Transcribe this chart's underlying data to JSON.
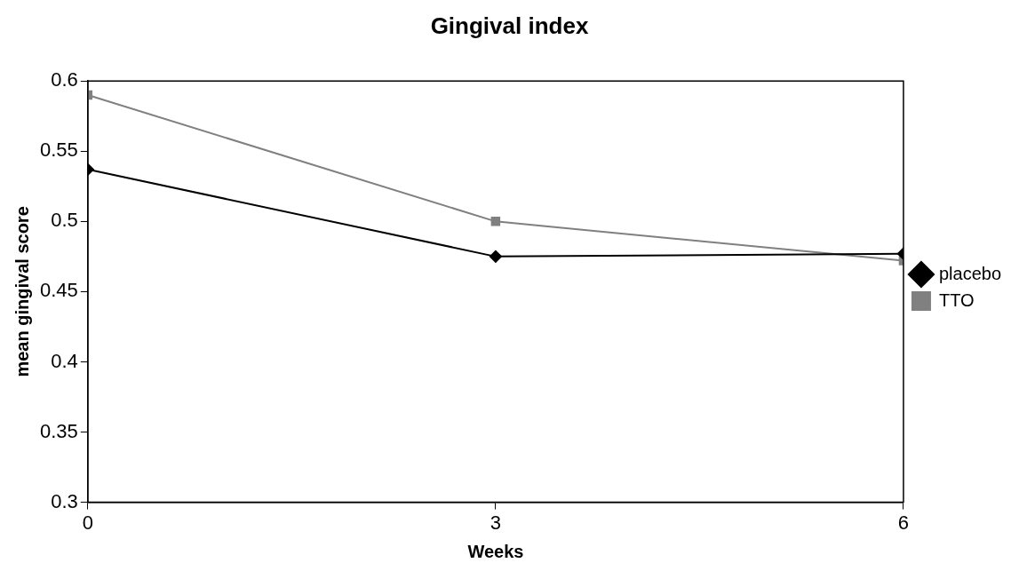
{
  "chart_data": {
    "type": "line",
    "title": "Gingival index",
    "xlabel": "Weeks",
    "ylabel": "mean gingival score",
    "x": [
      0,
      3,
      6
    ],
    "xlim": [
      0,
      6
    ],
    "xticks": [
      0,
      3,
      6
    ],
    "ylim": [
      0.3,
      0.6
    ],
    "yticks": [
      0.3,
      0.35,
      0.4,
      0.45,
      0.5,
      0.55,
      0.6
    ],
    "grid": false,
    "legend": "right",
    "line_style": "solid",
    "series": [
      {
        "name": "placebo",
        "color": "#000000",
        "marker": "diamond",
        "values": [
          0.537,
          0.475,
          0.477
        ]
      },
      {
        "name": "TTO",
        "color": "#808080",
        "marker": "square",
        "values": [
          0.59,
          0.5,
          0.472
        ]
      }
    ]
  }
}
